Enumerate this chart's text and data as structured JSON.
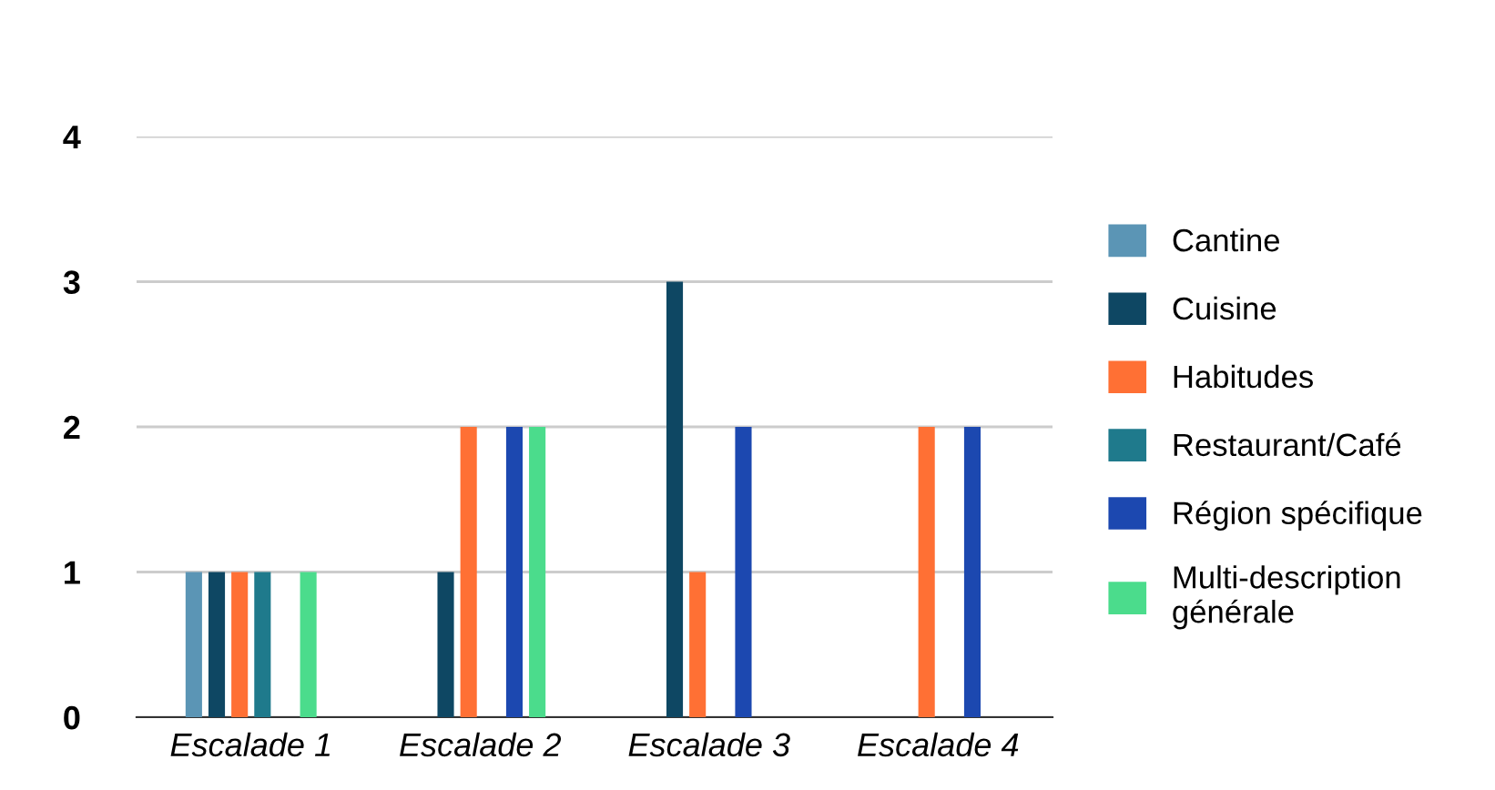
{
  "chart_data": {
    "type": "bar",
    "categories": [
      "Escalade 1",
      "Escalade 2",
      "Escalade 3",
      "Escalade 4"
    ],
    "series": [
      {
        "name": "Cantine",
        "color": "#5b95b5",
        "values": [
          1,
          0,
          0,
          0
        ]
      },
      {
        "name": "Cuisine",
        "color": "#0e4763",
        "values": [
          1,
          1,
          3,
          0
        ]
      },
      {
        "name": "Habitudes",
        "color": "#ff7034",
        "values": [
          1,
          2,
          1,
          2
        ]
      },
      {
        "name": "Restaurant/Café",
        "color": "#1f7a8c",
        "values": [
          1,
          0,
          0,
          0
        ]
      },
      {
        "name": "Région spécifique",
        "color": "#1c48b0",
        "values": [
          0,
          2,
          2,
          2
        ]
      },
      {
        "name": "Multi-description générale",
        "color": "#4bdc8c",
        "values": [
          1,
          2,
          0,
          0
        ]
      }
    ],
    "ylim": [
      0,
      4
    ],
    "yticks": [
      0,
      1,
      2,
      3,
      4
    ],
    "grid": "y",
    "legend": "right"
  }
}
